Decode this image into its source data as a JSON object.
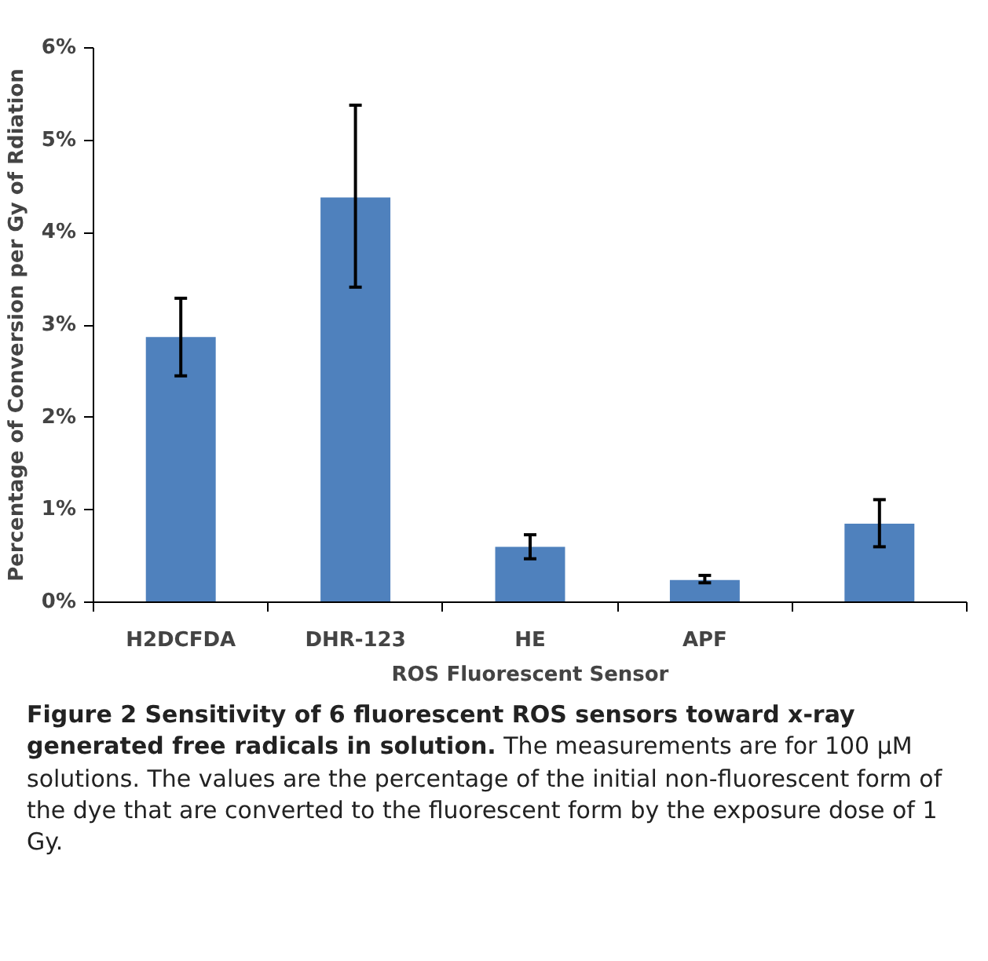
{
  "chart_data": {
    "type": "bar",
    "title": "Figure 2 Sensitivity of 6 fluorescent ROS sensors toward x-ray generated free radicals in solution.",
    "annotations": [
      "The measurements are for 100 μM solutions. The values are the percentage of the initial non-fluorescent form of the dye that are converted to the fluorescent form by the exposure dose of 1 Gy."
    ],
    "xlabel": "ROS Fluorescent Sensor",
    "ylabel": "Percentage of Conversion per Gy of Rdiation",
    "categories": [
      "H2DCFDA",
      "DHR-123",
      "HE",
      "APF",
      null
    ],
    "values": [
      2.87,
      4.38,
      0.6,
      0.24,
      0.85
    ],
    "errors": [
      [
        2.45,
        3.29
      ],
      [
        3.41,
        5.38
      ],
      [
        0.47,
        0.73
      ],
      [
        0.21,
        0.29
      ],
      [
        0.6,
        1.11
      ]
    ],
    "color": "#4f81bd",
    "ylim": [
      0,
      6
    ],
    "yticks": [
      {
        "value": 0,
        "label": "0%"
      },
      {
        "value": 1,
        "label": "1%"
      },
      {
        "value": 2,
        "label": "2%"
      },
      {
        "value": 3,
        "label": "3%"
      },
      {
        "value": 4,
        "label": "4%"
      },
      {
        "value": 5,
        "label": "5%"
      },
      {
        "value": 6,
        "label": "6%"
      }
    ],
    "grid": false
  }
}
